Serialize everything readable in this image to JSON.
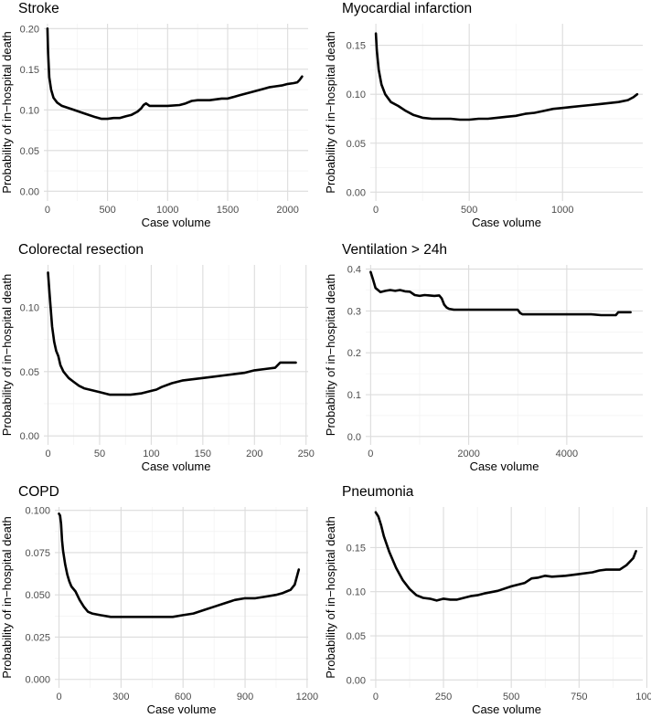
{
  "chart_data": [
    {
      "type": "line",
      "title": "Stroke",
      "xlabel": "Case volume",
      "ylabel": "Probability of in−hospital death",
      "xlim": [
        -30,
        2170
      ],
      "ylim": [
        -0.012,
        0.206
      ],
      "xticks": [
        0,
        500,
        1000,
        1500,
        2000
      ],
      "xtick_labels": [
        "0",
        "500",
        "1000",
        "1500",
        "2000"
      ],
      "yticks": [
        0.0,
        0.05,
        0.1,
        0.15,
        0.2
      ],
      "ytick_labels": [
        "0.00",
        "0.05",
        "0.10",
        "0.15",
        "0.20"
      ],
      "series": [
        {
          "name": "Stroke",
          "x": [
            0,
            5,
            15,
            30,
            50,
            80,
            120,
            200,
            300,
            400,
            450,
            500,
            550,
            600,
            650,
            700,
            750,
            780,
            800,
            820,
            850,
            900,
            1000,
            1100,
            1150,
            1200,
            1250,
            1300,
            1350,
            1400,
            1450,
            1500,
            1550,
            1600,
            1650,
            1700,
            1750,
            1800,
            1850,
            1900,
            1950,
            2000,
            2050,
            2080,
            2100,
            2120
          ],
          "y": [
            0.2,
            0.17,
            0.14,
            0.125,
            0.115,
            0.109,
            0.105,
            0.101,
            0.096,
            0.091,
            0.089,
            0.089,
            0.09,
            0.09,
            0.092,
            0.094,
            0.098,
            0.102,
            0.106,
            0.108,
            0.105,
            0.105,
            0.105,
            0.106,
            0.108,
            0.111,
            0.112,
            0.112,
            0.112,
            0.113,
            0.114,
            0.114,
            0.116,
            0.118,
            0.12,
            0.122,
            0.124,
            0.126,
            0.128,
            0.129,
            0.13,
            0.132,
            0.133,
            0.134,
            0.137,
            0.141
          ]
        }
      ]
    },
    {
      "type": "line",
      "title": "Myocardial infarction",
      "xlabel": "Case volume",
      "ylabel": "Probability of in−hospital death",
      "xlim": [
        -30,
        1430
      ],
      "ylim": [
        -0.009,
        0.172
      ],
      "xticks": [
        0,
        500,
        1000
      ],
      "xtick_labels": [
        "0",
        "500",
        "1000"
      ],
      "yticks": [
        0.0,
        0.05,
        0.1,
        0.15
      ],
      "ytick_labels": [
        "0.00",
        "0.05",
        "0.10",
        "0.15"
      ],
      "series": [
        {
          "name": "Myocardial infarction",
          "x": [
            0,
            5,
            15,
            30,
            50,
            80,
            120,
            160,
            200,
            250,
            300,
            350,
            400,
            450,
            500,
            550,
            600,
            650,
            700,
            750,
            800,
            850,
            900,
            950,
            1000,
            1050,
            1100,
            1150,
            1200,
            1250,
            1300,
            1350,
            1380,
            1400
          ],
          "y": [
            0.162,
            0.145,
            0.125,
            0.11,
            0.1,
            0.092,
            0.088,
            0.083,
            0.079,
            0.076,
            0.075,
            0.075,
            0.075,
            0.074,
            0.074,
            0.075,
            0.075,
            0.076,
            0.077,
            0.078,
            0.08,
            0.081,
            0.083,
            0.085,
            0.086,
            0.087,
            0.088,
            0.089,
            0.09,
            0.091,
            0.092,
            0.094,
            0.097,
            0.1
          ]
        }
      ]
    },
    {
      "type": "line",
      "title": "Colorectal resection",
      "xlabel": "Case volume",
      "ylabel": "Probability of in−hospital death",
      "xlim": [
        -4,
        252
      ],
      "ylim": [
        -0.007,
        0.133
      ],
      "xticks": [
        0,
        50,
        100,
        150,
        200,
        250
      ],
      "xtick_labels": [
        "0",
        "50",
        "100",
        "150",
        "200",
        "250"
      ],
      "yticks": [
        0.0,
        0.05,
        0.1
      ],
      "ytick_labels": [
        "0.00",
        "0.05",
        "0.10"
      ],
      "series": [
        {
          "name": "Colorectal resection",
          "x": [
            0,
            2,
            4,
            6,
            8,
            10,
            12,
            15,
            20,
            25,
            30,
            35,
            40,
            50,
            60,
            70,
            80,
            90,
            100,
            105,
            110,
            120,
            130,
            140,
            150,
            160,
            170,
            180,
            190,
            200,
            210,
            220,
            225,
            230,
            240
          ],
          "y": [
            0.127,
            0.105,
            0.085,
            0.073,
            0.066,
            0.062,
            0.055,
            0.05,
            0.045,
            0.042,
            0.039,
            0.037,
            0.036,
            0.034,
            0.032,
            0.032,
            0.032,
            0.033,
            0.035,
            0.036,
            0.038,
            0.041,
            0.043,
            0.044,
            0.045,
            0.046,
            0.047,
            0.048,
            0.049,
            0.051,
            0.052,
            0.053,
            0.057,
            0.057,
            0.057
          ]
        }
      ]
    },
    {
      "type": "line",
      "title": "Ventilation > 24h",
      "xlabel": "Case volume",
      "ylabel": "Probability of in−hospital death",
      "xlim": [
        -100,
        5550
      ],
      "ylim": [
        -0.02,
        0.41
      ],
      "xticks": [
        0,
        2000,
        4000
      ],
      "xtick_labels": [
        "0",
        "2000",
        "4000"
      ],
      "yticks": [
        0.0,
        0.1,
        0.2,
        0.3,
        0.4
      ],
      "ytick_labels": [
        "0.0",
        "0.1",
        "0.2",
        "0.3",
        "0.4"
      ],
      "series": [
        {
          "name": "Ventilation > 24h",
          "x": [
            0,
            50,
            100,
            200,
            300,
            400,
            500,
            600,
            700,
            800,
            900,
            1000,
            1100,
            1200,
            1300,
            1400,
            1450,
            1500,
            1550,
            1600,
            1700,
            1800,
            2000,
            2500,
            3000,
            3050,
            3100,
            3200,
            3500,
            4000,
            4500,
            4700,
            4800,
            4900,
            5000,
            5050,
            5100,
            5300
          ],
          "y": [
            0.393,
            0.375,
            0.355,
            0.345,
            0.348,
            0.35,
            0.348,
            0.35,
            0.347,
            0.346,
            0.338,
            0.336,
            0.338,
            0.337,
            0.336,
            0.337,
            0.33,
            0.315,
            0.308,
            0.305,
            0.303,
            0.303,
            0.303,
            0.303,
            0.303,
            0.295,
            0.292,
            0.292,
            0.292,
            0.292,
            0.292,
            0.29,
            0.29,
            0.29,
            0.29,
            0.297,
            0.297,
            0.297
          ]
        }
      ]
    },
    {
      "type": "line",
      "title": "COPD",
      "xlabel": "Case volume",
      "ylabel": "Probability of in−hospital death",
      "xlim": [
        -20,
        1205
      ],
      "ylim": [
        -0.005,
        0.102
      ],
      "xticks": [
        0,
        300,
        600,
        900,
        1200
      ],
      "xtick_labels": [
        "0",
        "300",
        "600",
        "900",
        "1200"
      ],
      "yticks": [
        0.0,
        0.025,
        0.05,
        0.075,
        0.1
      ],
      "ytick_labels": [
        "0.000",
        "0.025",
        "0.050",
        "0.075",
        "0.100"
      ],
      "series": [
        {
          "name": "COPD",
          "x": [
            0,
            5,
            10,
            15,
            20,
            30,
            40,
            50,
            60,
            80,
            100,
            120,
            140,
            160,
            200,
            250,
            300,
            350,
            400,
            450,
            500,
            550,
            600,
            650,
            700,
            750,
            800,
            850,
            900,
            950,
            1000,
            1050,
            1080,
            1100,
            1120,
            1140,
            1160
          ],
          "y": [
            0.098,
            0.097,
            0.092,
            0.082,
            0.076,
            0.068,
            0.062,
            0.058,
            0.055,
            0.052,
            0.047,
            0.043,
            0.04,
            0.039,
            0.038,
            0.037,
            0.037,
            0.037,
            0.037,
            0.037,
            0.037,
            0.037,
            0.038,
            0.039,
            0.041,
            0.043,
            0.045,
            0.047,
            0.048,
            0.048,
            0.049,
            0.05,
            0.051,
            0.052,
            0.053,
            0.056,
            0.065
          ]
        }
      ]
    },
    {
      "type": "line",
      "title": "Pneumonia",
      "xlabel": "Case volume",
      "ylabel": "Probability of in−hospital death",
      "xlim": [
        -20,
        985
      ],
      "ylim": [
        -0.009,
        0.196
      ],
      "xticks": [
        0,
        250,
        500,
        750,
        1000
      ],
      "xtick_labels": [
        "0",
        "250",
        "500",
        "750",
        "1000"
      ],
      "yticks": [
        0.0,
        0.05,
        0.1,
        0.15
      ],
      "ytick_labels": [
        "0.00",
        "0.05",
        "0.10",
        "0.15"
      ],
      "series": [
        {
          "name": "Pneumonia",
          "x": [
            0,
            10,
            20,
            30,
            50,
            75,
            100,
            125,
            150,
            175,
            200,
            225,
            250,
            275,
            300,
            325,
            350,
            375,
            400,
            450,
            500,
            550,
            575,
            600,
            625,
            650,
            700,
            750,
            800,
            825,
            850,
            875,
            900,
            925,
            950,
            960
          ],
          "y": [
            0.19,
            0.185,
            0.175,
            0.163,
            0.145,
            0.127,
            0.113,
            0.103,
            0.096,
            0.093,
            0.092,
            0.09,
            0.092,
            0.091,
            0.091,
            0.093,
            0.095,
            0.096,
            0.098,
            0.101,
            0.106,
            0.11,
            0.115,
            0.116,
            0.118,
            0.117,
            0.118,
            0.12,
            0.122,
            0.124,
            0.125,
            0.125,
            0.125,
            0.13,
            0.138,
            0.146
          ]
        }
      ]
    }
  ]
}
